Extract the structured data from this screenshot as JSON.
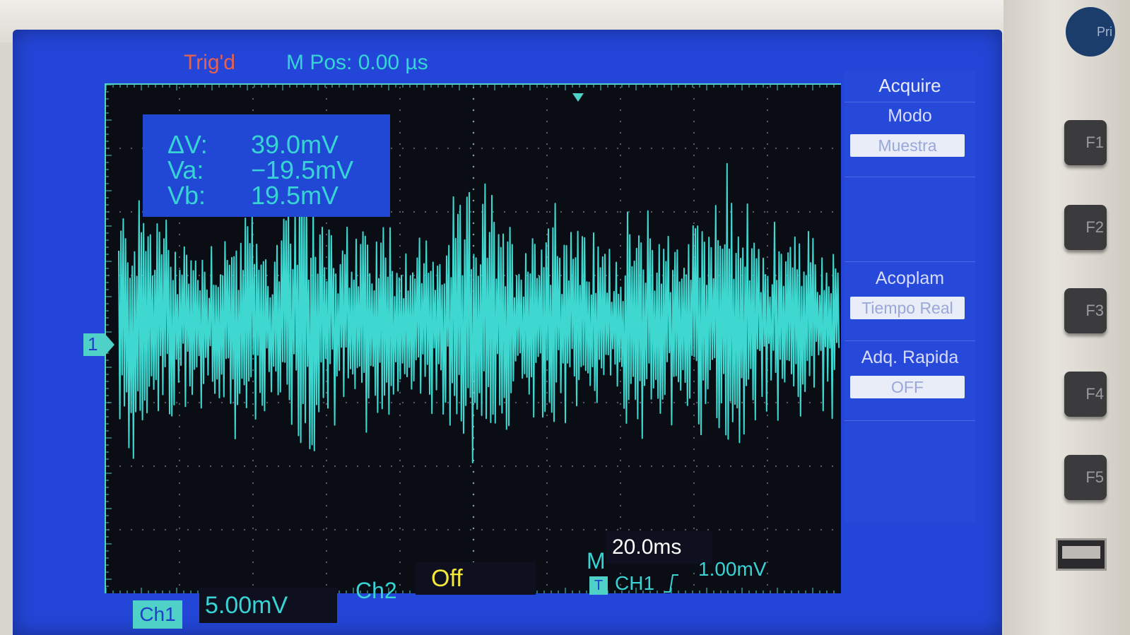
{
  "status": {
    "trig": "Trig'd",
    "mpos": "M Pos: 0.00 µs"
  },
  "measurements": {
    "dv_label": "ΔV:",
    "dv_value": "39.0mV",
    "va_label": "Va:",
    "va_value": "−19.5mV",
    "vb_label": "Vb:",
    "vb_value": "19.5mV"
  },
  "channel_marker": "1",
  "menu": {
    "title": "Acquire",
    "mode_label": "Modo",
    "mode_value": "Muestra",
    "coupling_label": "Acoplam",
    "coupling_value": "Tiempo Real",
    "fast_label": "Adq. Rapida",
    "fast_value": "OFF"
  },
  "bottom": {
    "ch1_tab": "Ch1",
    "ch1_scale": "5.00mV",
    "ch2_label": "Ch2",
    "ch2_value": "Off",
    "timebase_prefix": "M",
    "timebase_value": "20.0ms",
    "trig_icon": "T",
    "trig_source": "CH1",
    "trig_level": "1.00mV"
  },
  "softkeys": [
    "F1",
    "F2",
    "F3",
    "F4",
    "F5"
  ],
  "knob_label": "Pri",
  "colors": {
    "screen_bg": "#2346d8",
    "trace": "#3fd8d0",
    "trig_text": "#e8604e",
    "ch2_text": "#f5e63a"
  },
  "icons": [
    "ch1-level-marker-icon",
    "trigger-icon",
    "rising-edge-icon",
    "usb-port-icon"
  ]
}
